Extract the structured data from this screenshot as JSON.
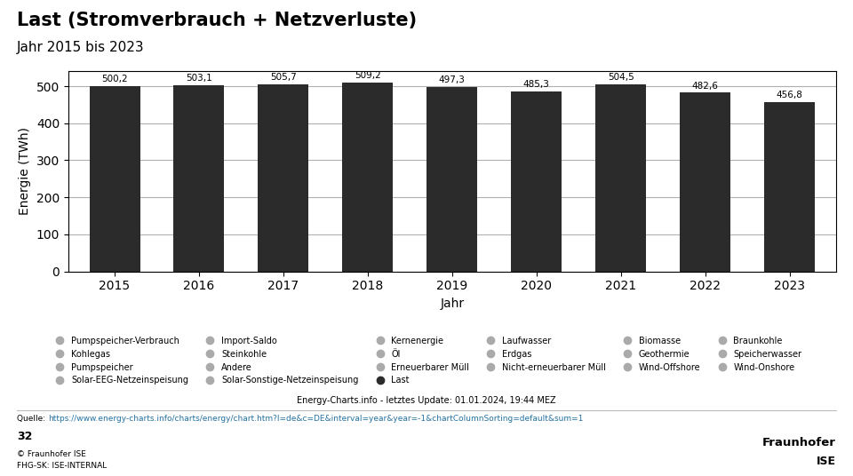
{
  "chart_data": {
    "type": "bar",
    "title": "Last (Stromverbrauch + Netzverluste)",
    "subtitle": "Jahr 2015 bis 2023",
    "categories": [
      "2015",
      "2016",
      "2017",
      "2018",
      "2019",
      "2020",
      "2021",
      "2022",
      "2023"
    ],
    "xlabel": "Jahr",
    "ylabel": "Energie (TWh)",
    "ylim": [
      0,
      540
    ],
    "yticks": [
      0,
      100,
      200,
      300,
      400,
      500
    ],
    "grid": true,
    "data_labels": true,
    "legend": "lower center",
    "series": [
      {
        "name": "Pumpspeicher-Verbrauch",
        "color": "#aaaaaa",
        "values": [
          null,
          null,
          null,
          null,
          null,
          null,
          null,
          null,
          null
        ]
      },
      {
        "name": "Kohlegas",
        "color": "#aaaaaa",
        "values": [
          null,
          null,
          null,
          null,
          null,
          null,
          null,
          null,
          null
        ]
      },
      {
        "name": "Pumpspeicher",
        "color": "#aaaaaa",
        "values": [
          null,
          null,
          null,
          null,
          null,
          null,
          null,
          null,
          null
        ]
      },
      {
        "name": "Solar-EEG-Netzeinspeisung",
        "color": "#aaaaaa",
        "values": [
          null,
          null,
          null,
          null,
          null,
          null,
          null,
          null,
          null
        ]
      },
      {
        "name": "Import-Saldo",
        "color": "#aaaaaa",
        "values": [
          null,
          null,
          null,
          null,
          null,
          null,
          null,
          null,
          null
        ]
      },
      {
        "name": "Steinkohle",
        "color": "#aaaaaa",
        "values": [
          null,
          null,
          null,
          null,
          null,
          null,
          null,
          null,
          null
        ]
      },
      {
        "name": "Andere",
        "color": "#aaaaaa",
        "values": [
          null,
          null,
          null,
          null,
          null,
          null,
          null,
          null,
          null
        ]
      },
      {
        "name": "Solar-Sonstige-Netzeinspeisung",
        "color": "#aaaaaa",
        "values": [
          null,
          null,
          null,
          null,
          null,
          null,
          null,
          null,
          null
        ]
      },
      {
        "name": "Kernenergie",
        "color": "#aaaaaa",
        "values": [
          null,
          null,
          null,
          null,
          null,
          null,
          null,
          null,
          null
        ]
      },
      {
        "name": "Öl",
        "color": "#aaaaaa",
        "values": [
          null,
          null,
          null,
          null,
          null,
          null,
          null,
          null,
          null
        ]
      },
      {
        "name": "Erneuerbarer Müll",
        "color": "#aaaaaa",
        "values": [
          null,
          null,
          null,
          null,
          null,
          null,
          null,
          null,
          null
        ]
      },
      {
        "name": "Last",
        "color": "#2b2b2b",
        "values": [
          500.2,
          503.1,
          505.7,
          509.2,
          497.3,
          485.3,
          504.5,
          482.6,
          456.8
        ],
        "value_labels": [
          "500,2",
          "503,1",
          "505,7",
          "509,2",
          "497,3",
          "485,3",
          "504,5",
          "482,6",
          "456,8"
        ]
      },
      {
        "name": "Laufwasser",
        "color": "#aaaaaa",
        "values": [
          null,
          null,
          null,
          null,
          null,
          null,
          null,
          null,
          null
        ]
      },
      {
        "name": "Erdgas",
        "color": "#aaaaaa",
        "values": [
          null,
          null,
          null,
          null,
          null,
          null,
          null,
          null,
          null
        ]
      },
      {
        "name": "Nicht-erneuerbarer Müll",
        "color": "#aaaaaa",
        "values": [
          null,
          null,
          null,
          null,
          null,
          null,
          null,
          null,
          null
        ]
      },
      {
        "name": "Biomasse",
        "color": "#aaaaaa",
        "values": [
          null,
          null,
          null,
          null,
          null,
          null,
          null,
          null,
          null
        ]
      },
      {
        "name": "Geothermie",
        "color": "#aaaaaa",
        "values": [
          null,
          null,
          null,
          null,
          null,
          null,
          null,
          null,
          null
        ]
      },
      {
        "name": "Wind-Offshore",
        "color": "#aaaaaa",
        "values": [
          null,
          null,
          null,
          null,
          null,
          null,
          null,
          null,
          null
        ]
      },
      {
        "name": "Braunkohle",
        "color": "#aaaaaa",
        "values": [
          null,
          null,
          null,
          null,
          null,
          null,
          null,
          null,
          null
        ]
      },
      {
        "name": "Speicherwasser",
        "color": "#aaaaaa",
        "values": [
          null,
          null,
          null,
          null,
          null,
          null,
          null,
          null,
          null
        ]
      },
      {
        "name": "Wind-Onshore",
        "color": "#aaaaaa",
        "values": [
          null,
          null,
          null,
          null,
          null,
          null,
          null,
          null,
          null
        ]
      }
    ],
    "annotations": [
      "Energy-Charts.info - letztes Update: 01.01.2024, 19:44 MEZ",
      "Quelle: ",
      "https://www.energy-charts.info/charts/energy/chart.htm?l=de&c=DE&interval=year&year=-1&chartColumnSorting=default&sum=1",
      "32",
      "© Fraunhofer ISE",
      "FHG-SK: ISE-INTERNAL",
      "Fraunhofer",
      "ISE"
    ]
  }
}
